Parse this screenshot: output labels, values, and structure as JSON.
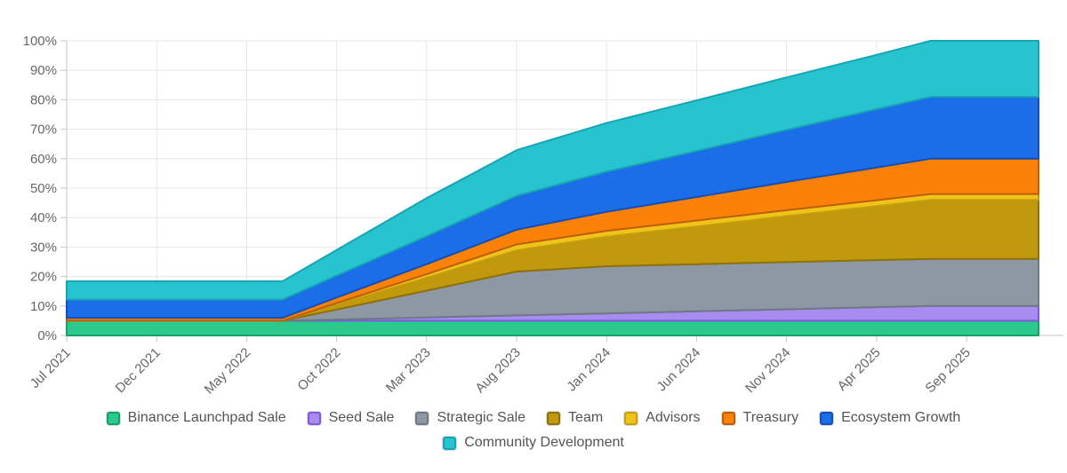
{
  "chart_data": {
    "type": "area",
    "stacked": true,
    "value_semantics": "cumulative unlocked supply percentage per allocation bucket",
    "unit": "%",
    "ylim": [
      0,
      100
    ],
    "y_tick_labels": [
      "0%",
      "10%",
      "20%",
      "30%",
      "40%",
      "50%",
      "60%",
      "70%",
      "80%",
      "90%",
      "100%"
    ],
    "grid": true,
    "legend_position": "bottom",
    "total_months": 54,
    "keyframe_months": [
      0,
      5,
      10,
      12,
      15,
      20,
      25,
      30,
      35,
      40,
      45,
      48,
      50,
      54
    ],
    "x_tick_labels": [
      {
        "label": "Jul 2021",
        "month": 0
      },
      {
        "label": "Dec 2021",
        "month": 5
      },
      {
        "label": "May 2022",
        "month": 10
      },
      {
        "label": "Oct 2022",
        "month": 15
      },
      {
        "label": "Mar 2023",
        "month": 20
      },
      {
        "label": "Aug 2023",
        "month": 25
      },
      {
        "label": "Jan 2024",
        "month": 30
      },
      {
        "label": "Jun 2024",
        "month": 35
      },
      {
        "label": "Nov 2024",
        "month": 40
      },
      {
        "label": "Apr 2025",
        "month": 45
      },
      {
        "label": "Sep 2025",
        "month": 50
      }
    ],
    "series": [
      {
        "name": "Binance Launchpad Sale",
        "fill": "#2bc98c",
        "stroke": "#17a06c",
        "values": [
          5,
          5,
          5,
          5,
          5,
          5,
          5,
          5,
          5,
          5,
          5,
          5,
          5,
          5
        ]
      },
      {
        "name": "Seed Sale",
        "fill": "#a88cf0",
        "stroke": "#8257e0",
        "values": [
          0,
          0,
          0,
          0,
          0.4,
          1.1,
          1.8,
          2.5,
          3.2,
          3.9,
          4.6,
          5,
          5,
          5
        ]
      },
      {
        "name": "Strategic Sale",
        "fill": "#8d98a4",
        "stroke": "#6e7984",
        "values": [
          0,
          0,
          0,
          0,
          3.4,
          9.1,
          14.9,
          16,
          16,
          16,
          16,
          16,
          16,
          16
        ]
      },
      {
        "name": "Team",
        "fill": "#c1990d",
        "stroke": "#8f7108",
        "values": [
          0,
          0,
          0,
          0,
          1.7,
          4.4,
          7.2,
          10,
          12.8,
          15.6,
          18.3,
          20,
          20,
          20
        ]
      },
      {
        "name": "Advisors",
        "fill": "#efc31a",
        "stroke": "#c7a00d",
        "values": [
          0,
          0,
          0,
          0,
          0.5,
          1.2,
          2,
          2,
          2,
          2,
          2,
          2,
          2,
          2
        ]
      },
      {
        "name": "Treasury",
        "fill": "#fb8208",
        "stroke": "#bf5e06",
        "values": [
          1,
          1,
          1,
          1,
          1.9,
          3.4,
          5,
          6.5,
          8,
          9.6,
          11.1,
          12,
          12,
          12
        ]
      },
      {
        "name": "Ecosystem Growth",
        "fill": "#1c6ee8",
        "stroke": "#124fb8",
        "values": [
          6.2,
          6.2,
          6.2,
          6.2,
          7.4,
          9.5,
          11.5,
          13.6,
          15.6,
          17.7,
          19.8,
          21,
          21,
          21
        ]
      },
      {
        "name": "Community Development",
        "fill": "#27c3ce",
        "stroke": "#16a5b5",
        "values": [
          6.2,
          6.2,
          6.2,
          6.2,
          8.7,
          12.9,
          15.5,
          16.5,
          17.2,
          17.8,
          18.4,
          19,
          19,
          19
        ]
      }
    ]
  },
  "legend": {
    "rows": [
      7,
      1
    ]
  },
  "colors": {
    "grid": "#e7e7e7",
    "axis": "#c6c6c6",
    "axis_text": "#666666",
    "legend_text": "#545454",
    "background": "#ffffff"
  }
}
